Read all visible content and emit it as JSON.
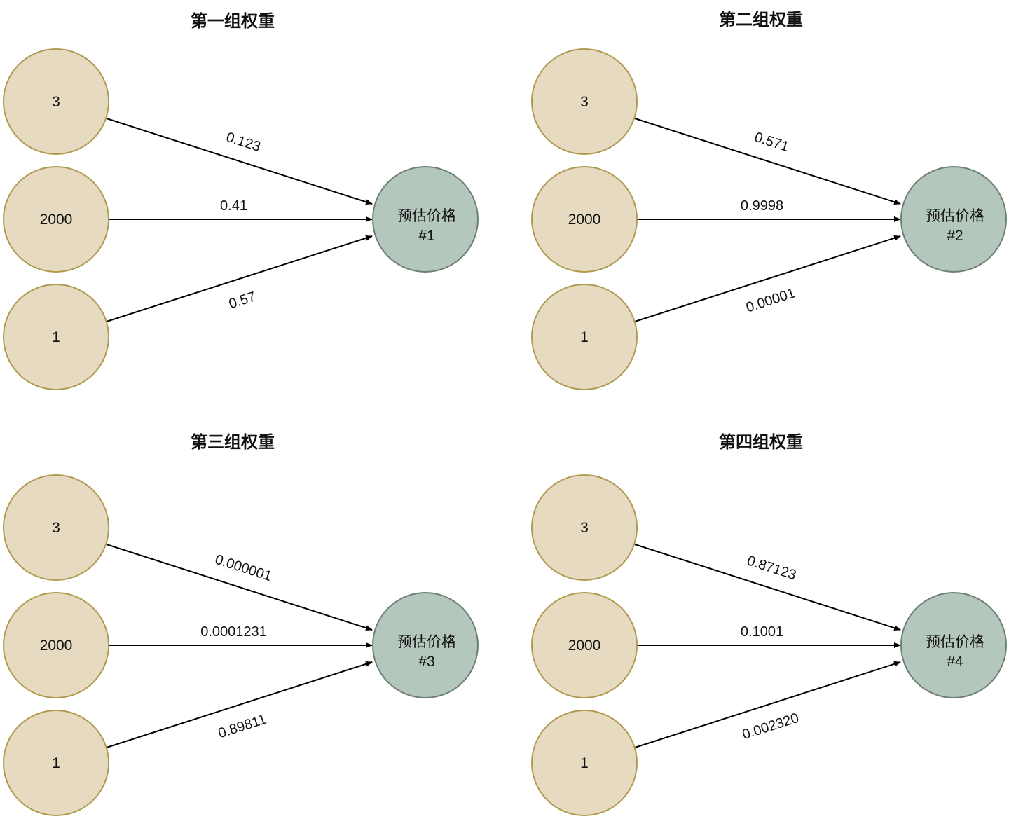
{
  "colors": {
    "input_fill": "#e6dbc1",
    "input_stroke": "#b09a4f",
    "output_fill": "#b3c7bd",
    "output_stroke": "#6d7f76",
    "edge": "#000000"
  },
  "panels": [
    {
      "title": "第一组权重",
      "inputs": [
        "3",
        "2000",
        "1"
      ],
      "output": {
        "line1": "预估价格",
        "line2": "#1"
      },
      "weights": [
        "0.123",
        "0.41",
        "0.57"
      ]
    },
    {
      "title": "第二组权重",
      "inputs": [
        "3",
        "2000",
        "1"
      ],
      "output": {
        "line1": "预估价格",
        "line2": "#2"
      },
      "weights": [
        "0.571",
        "0.9998",
        "0.00001"
      ]
    },
    {
      "title": "第三组权重",
      "inputs": [
        "3",
        "2000",
        "1"
      ],
      "output": {
        "line1": "预估价格",
        "line2": "#3"
      },
      "weights": [
        "0.000001",
        "0.0001231",
        "0.89811"
      ]
    },
    {
      "title": "第四组权重",
      "inputs": [
        "3",
        "2000",
        "1"
      ],
      "output": {
        "line1": "预估价格",
        "line2": "#4"
      },
      "weights": [
        "0.87123",
        "0.1001",
        "0.002320"
      ]
    }
  ]
}
